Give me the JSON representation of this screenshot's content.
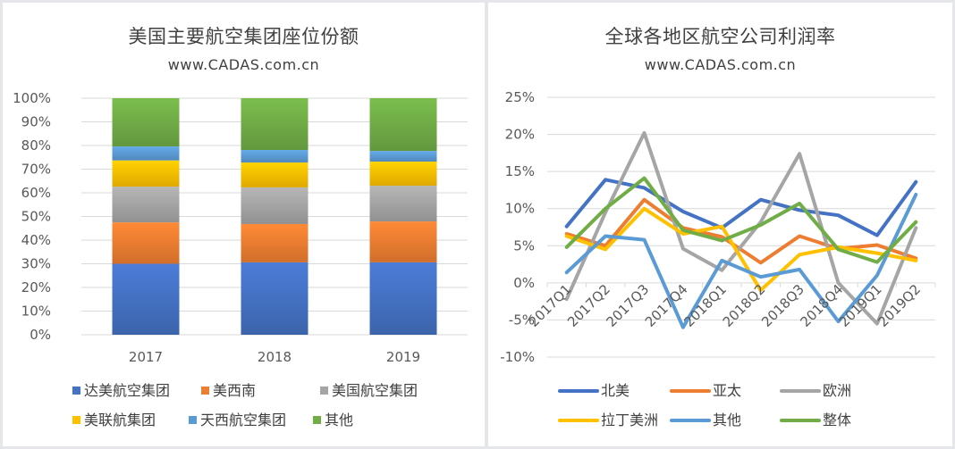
{
  "chart_data": [
    {
      "type": "bar",
      "stacked": "percent",
      "title": "美国主要航空集团座位份额",
      "subtitle": "www.CADAS.com.cn",
      "categories": [
        "2017",
        "2018",
        "2019"
      ],
      "series": [
        {
          "name": "达美航空集团",
          "color": "#4472c4",
          "values": [
            30.0,
            30.6,
            30.6
          ]
        },
        {
          "name": "美西南",
          "color": "#ed7d31",
          "values": [
            17.5,
            16.2,
            17.3
          ]
        },
        {
          "name": "美国航空集团",
          "color": "#a5a5a5",
          "values": [
            15.1,
            15.5,
            15.1
          ]
        },
        {
          "name": "美联航集团",
          "color": "#ffc000",
          "values": [
            11.1,
            10.5,
            10.2
          ]
        },
        {
          "name": "天西航空集团",
          "color": "#5b9bd5",
          "values": [
            5.9,
            5.3,
            4.5
          ]
        },
        {
          "name": "其他",
          "color": "#70ad47",
          "values": [
            20.4,
            21.9,
            22.3
          ]
        }
      ],
      "ylim": [
        0,
        100
      ],
      "yticks": [
        "0%",
        "10%",
        "20%",
        "30%",
        "40%",
        "50%",
        "60%",
        "70%",
        "80%",
        "90%",
        "100%"
      ],
      "xlabel": "",
      "ylabel": "",
      "grid": true,
      "legend": "bottom"
    },
    {
      "type": "line",
      "title": "全球各地区航空公司利润率",
      "subtitle": "www.CADAS.com.cn",
      "categories": [
        "2017Q1",
        "2017Q2",
        "2017Q3",
        "2017Q4",
        "2018Q1",
        "2018Q2",
        "2018Q3",
        "2018Q4",
        "2019Q1",
        "2019Q2"
      ],
      "series": [
        {
          "name": "北美",
          "color": "#4472c4",
          "values": [
            7.6,
            13.9,
            12.8,
            9.6,
            7.4,
            11.2,
            9.8,
            9.1,
            6.4,
            13.6
          ]
        },
        {
          "name": "亚太",
          "color": "#ed7d31",
          "values": [
            6.6,
            5.0,
            11.2,
            7.4,
            6.2,
            2.7,
            6.3,
            4.6,
            5.1,
            3.3
          ]
        },
        {
          "name": "欧洲",
          "color": "#a5a5a5",
          "values": [
            -2.2,
            9.5,
            20.2,
            4.6,
            1.7,
            8.2,
            17.4,
            0.0,
            -5.5,
            7.4
          ]
        },
        {
          "name": "拉丁美洲",
          "color": "#ffc000",
          "values": [
            6.3,
            4.5,
            10.0,
            6.6,
            7.6,
            -1.0,
            3.8,
            4.8,
            4.0,
            3.0
          ]
        },
        {
          "name": "其他",
          "color": "#5b9bd5",
          "values": [
            1.4,
            6.3,
            5.8,
            -6.0,
            3.0,
            0.8,
            1.8,
            -5.2,
            1.0,
            11.9
          ]
        },
        {
          "name": "整体",
          "color": "#70ad47",
          "values": [
            4.8,
            10.0,
            14.1,
            7.1,
            5.7,
            7.8,
            10.7,
            4.5,
            2.8,
            8.2
          ]
        }
      ],
      "ylim": [
        -10,
        25
      ],
      "yticks": [
        "-10%",
        "-5%",
        "0%",
        "5%",
        "10%",
        "15%",
        "20%",
        "25%"
      ],
      "xlabel": "",
      "ylabel": "",
      "grid": true,
      "legend": "bottom"
    }
  ]
}
